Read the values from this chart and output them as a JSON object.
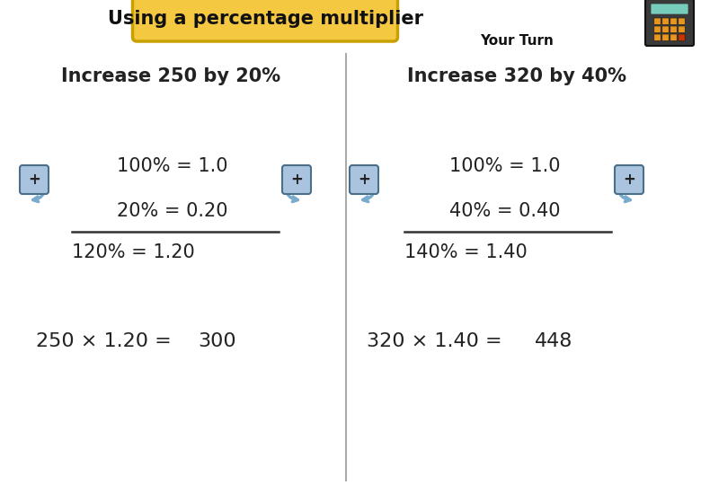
{
  "title": "Using a percentage multiplier",
  "title_bg": "#f5c842",
  "title_border": "#c8a000",
  "your_turn_text": "Your Turn",
  "bg_color": "#ffffff",
  "left": {
    "heading": "Increase 250 by 20%",
    "line1": "100% = 1.0",
    "line2": "20% = 0.20",
    "line3": "120% = 1.20",
    "line4": "250 × 1.20 =",
    "answer": "300"
  },
  "right": {
    "heading": "Increase 320 by 40%",
    "line1": "100% = 1.0",
    "line2": "40% = 0.40",
    "line3": "140% = 1.40",
    "line4": "320 × 1.40 =",
    "answer": "448"
  },
  "plus_box_color": "#aac4e0",
  "plus_box_edge": "#4a6f8a",
  "arrow_color": "#7aabcc",
  "font_color": "#222222",
  "divider_color": "#aaaaaa",
  "calc_body": "#3a3a3a",
  "calc_screen": "#77ccbb",
  "calc_btn": "#e8961e",
  "calc_btn_red": "#cc3300"
}
